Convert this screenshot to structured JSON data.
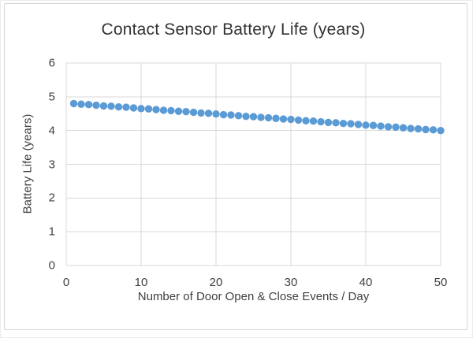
{
  "chart_data": {
    "type": "scatter",
    "title": "Contact Sensor Battery Life (years)",
    "xlabel": "Number of Door Open & Close Events / Day",
    "ylabel": "Battery Life (years)",
    "xlim": [
      0,
      50
    ],
    "ylim": [
      0,
      6
    ],
    "x_ticks": [
      0,
      10,
      20,
      30,
      40,
      50
    ],
    "y_ticks": [
      0,
      1,
      2,
      3,
      4,
      5,
      6
    ],
    "grid": true,
    "legend": false,
    "marker_color": "#5B9BD5",
    "gridline_color": "#D9D9D9",
    "text_color": "#3F3F3F",
    "x": [
      1,
      2,
      3,
      4,
      5,
      6,
      7,
      8,
      9,
      10,
      11,
      12,
      13,
      14,
      15,
      16,
      17,
      18,
      19,
      20,
      21,
      22,
      23,
      24,
      25,
      26,
      27,
      28,
      29,
      30,
      31,
      32,
      33,
      34,
      35,
      36,
      37,
      38,
      39,
      40,
      41,
      42,
      43,
      44,
      45,
      46,
      47,
      48,
      49,
      50
    ],
    "y": [
      4.8,
      4.78,
      4.77,
      4.75,
      4.73,
      4.72,
      4.7,
      4.69,
      4.67,
      4.65,
      4.64,
      4.62,
      4.6,
      4.59,
      4.57,
      4.56,
      4.54,
      4.52,
      4.51,
      4.49,
      4.47,
      4.46,
      4.44,
      4.42,
      4.41,
      4.39,
      4.38,
      4.36,
      4.34,
      4.33,
      4.31,
      4.29,
      4.28,
      4.26,
      4.24,
      4.23,
      4.21,
      4.2,
      4.18,
      4.16,
      4.15,
      4.13,
      4.11,
      4.1,
      4.08,
      4.06,
      4.05,
      4.03,
      4.02,
      4.0
    ]
  }
}
